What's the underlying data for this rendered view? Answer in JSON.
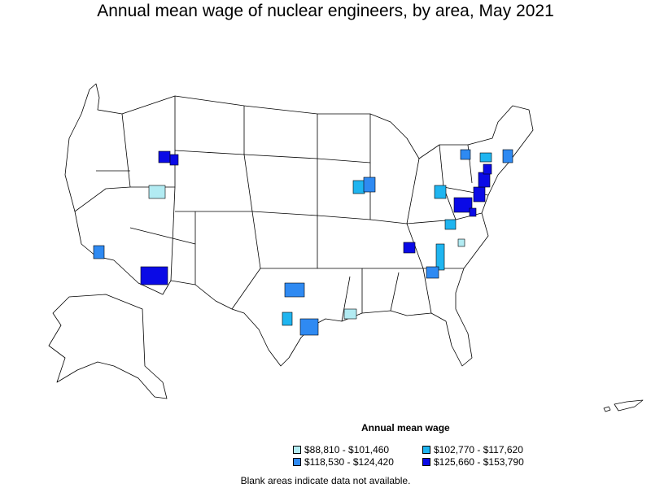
{
  "title": "Annual mean wage of nuclear engineers, by area, May 2021",
  "legend": {
    "title": "Annual mean wage",
    "items": [
      {
        "label": "$88,810 - $101,460",
        "color": "#b2ebf2"
      },
      {
        "label": "$102,770 - $117,620",
        "color": "#1fb5f0"
      },
      {
        "label": "$118,530 - $124,420",
        "color": "#2f8af2"
      },
      {
        "label": "$125,660 - $153,790",
        "color": "#0a0ae6"
      }
    ]
  },
  "note": "Blank areas indicate data not available.",
  "colors": {
    "boundary": "#000000",
    "land": "#ffffff"
  }
}
